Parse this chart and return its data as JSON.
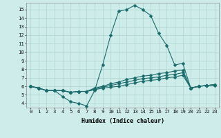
{
  "title": "",
  "xlabel": "Humidex (Indice chaleur)",
  "bg_color": "#ceecea",
  "line_color": "#1a6b6b",
  "x_ticks": [
    0,
    1,
    2,
    3,
    4,
    5,
    6,
    7,
    8,
    9,
    10,
    11,
    12,
    13,
    14,
    15,
    16,
    17,
    18,
    19,
    20,
    21,
    22,
    23
  ],
  "ylim": [
    3.5,
    15.8
  ],
  "xlim": [
    -0.5,
    23.5
  ],
  "yticks": [
    4,
    5,
    6,
    7,
    8,
    9,
    10,
    11,
    12,
    13,
    14,
    15
  ],
  "lines": [
    [
      6.0,
      5.8,
      5.5,
      5.5,
      4.8,
      4.2,
      4.0,
      3.7,
      5.5,
      8.5,
      12.0,
      14.8,
      15.0,
      15.5,
      15.0,
      14.3,
      12.2,
      10.8,
      8.5,
      8.7,
      5.8,
      6.0,
      6.1,
      6.1
    ],
    [
      6.0,
      5.8,
      5.5,
      5.5,
      5.5,
      5.3,
      5.4,
      5.4,
      5.8,
      6.0,
      6.3,
      6.5,
      6.8,
      7.0,
      7.2,
      7.3,
      7.5,
      7.6,
      7.8,
      7.9,
      5.8,
      6.0,
      6.1,
      6.2
    ],
    [
      6.0,
      5.8,
      5.5,
      5.5,
      5.5,
      5.3,
      5.4,
      5.4,
      5.7,
      5.9,
      6.1,
      6.3,
      6.5,
      6.7,
      6.9,
      7.0,
      7.1,
      7.3,
      7.4,
      7.6,
      5.8,
      6.0,
      6.1,
      6.2
    ],
    [
      6.0,
      5.8,
      5.5,
      5.5,
      5.5,
      5.3,
      5.4,
      5.4,
      5.6,
      5.8,
      5.9,
      6.0,
      6.2,
      6.4,
      6.6,
      6.7,
      6.8,
      7.0,
      7.1,
      7.3,
      5.8,
      6.0,
      6.1,
      6.2
    ]
  ],
  "grid_color": "#aed4d0",
  "markersize": 2.5,
  "linewidth": 0.8,
  "xlabel_fontsize": 6.0,
  "tick_fontsize": 5.2
}
